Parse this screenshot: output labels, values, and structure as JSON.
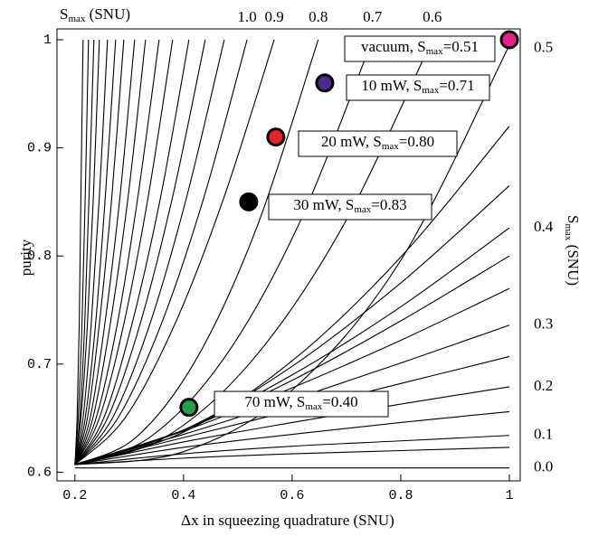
{
  "chart_data": {
    "type": "contour",
    "xlabel": "Δx in squeezing quadrature (SNU)",
    "ylabel": "purity",
    "xlim": [
      0.167,
      1.02
    ],
    "ylim": [
      0.592,
      1.01
    ],
    "xticks": [
      0.2,
      0.4,
      0.6,
      0.8,
      1
    ],
    "yticks": [
      0.6,
      0.7,
      0.8,
      0.9,
      1
    ],
    "top_axis": {
      "label": {
        "main": "S",
        "sub": "max",
        "rest": " (SNU)"
      },
      "ticks": [
        {
          "value": 1,
          "label": "1.0",
          "at": 0.517
        },
        {
          "value": 0.9,
          "at": 0.567
        },
        {
          "value": 0.8,
          "at": 0.648
        },
        {
          "value": 0.7,
          "at": 0.748
        },
        {
          "value": 0.6,
          "at": 0.858
        }
      ]
    },
    "right_axis": {
      "label": {
        "main": "S",
        "sub": "max",
        "rest": " (SNU)"
      },
      "ticks": [
        {
          "value": 0.5,
          "at": 0.992
        },
        {
          "value": 0.4,
          "at": 0.826
        },
        {
          "value": 0.3,
          "at": 0.736
        },
        {
          "value": 0.2,
          "at": 0.679
        },
        {
          "value": 0.1,
          "at": 0.634
        },
        {
          "value": 0,
          "label": "0.0",
          "at": 0.604
        }
      ]
    },
    "contour_color": "#000000",
    "contours": [
      {
        "x": [
          0.2,
          0.204,
          0.208,
          0.211,
          0.215
        ],
        "y": [
          0.607,
          0.65,
          0.737,
          0.855,
          1.0
        ]
      },
      {
        "x": [
          0.2,
          0.206,
          0.213,
          0.219,
          0.225
        ],
        "y": [
          0.607,
          0.65,
          0.737,
          0.855,
          1.0
        ]
      },
      {
        "x": [
          0.2,
          0.209,
          0.218,
          0.226,
          0.235
        ],
        "y": [
          0.607,
          0.65,
          0.737,
          0.855,
          1.0
        ]
      },
      {
        "x": [
          0.2,
          0.211,
          0.223,
          0.234,
          0.245
        ],
        "y": [
          0.607,
          0.65,
          0.737,
          0.855,
          1.0
        ]
      },
      {
        "x": [
          0.2,
          0.215,
          0.23,
          0.245,
          0.26
        ],
        "y": [
          0.607,
          0.65,
          0.737,
          0.855,
          1.0
        ]
      },
      {
        "x": [
          0.2,
          0.219,
          0.238,
          0.256,
          0.275
        ],
        "y": [
          0.607,
          0.65,
          0.737,
          0.855,
          1.0
        ]
      },
      {
        "x": [
          0.2,
          0.223,
          0.245,
          0.268,
          0.29
        ],
        "y": [
          0.607,
          0.65,
          0.737,
          0.855,
          1.0
        ]
      },
      {
        "x": [
          0.2,
          0.228,
          0.255,
          0.283,
          0.31
        ],
        "y": [
          0.607,
          0.65,
          0.737,
          0.855,
          1.0
        ]
      },
      {
        "x": [
          0.2,
          0.233,
          0.265,
          0.298,
          0.33
        ],
        "y": [
          0.607,
          0.65,
          0.737,
          0.855,
          1.0
        ]
      },
      {
        "x": [
          0.2,
          0.239,
          0.278,
          0.316,
          0.355
        ],
        "y": [
          0.607,
          0.65,
          0.737,
          0.855,
          1.0
        ]
      },
      {
        "x": [
          0.2,
          0.245,
          0.29,
          0.335,
          0.38
        ],
        "y": [
          0.607,
          0.65,
          0.737,
          0.855,
          1.0
        ]
      },
      {
        "x": [
          0.2,
          0.253,
          0.305,
          0.358,
          0.41
        ],
        "y": [
          0.607,
          0.65,
          0.737,
          0.855,
          1.0
        ]
      },
      {
        "x": [
          0.2,
          0.26,
          0.32,
          0.38,
          0.44
        ],
        "y": [
          0.607,
          0.65,
          0.737,
          0.855,
          1.0
        ]
      },
      {
        "x": [
          0.2,
          0.269,
          0.338,
          0.406,
          0.475
        ],
        "y": [
          0.607,
          0.65,
          0.737,
          0.855,
          1.0
        ]
      },
      {
        "x": [
          0.2,
          0.279,
          0.359,
          0.438,
          0.517
        ],
        "y": [
          0.607,
          0.65,
          0.737,
          0.855,
          1.0
        ]
      },
      {
        "x": [
          0.2,
          0.292,
          0.384,
          0.475,
          0.567
        ],
        "y": [
          0.607,
          0.65,
          0.737,
          0.855,
          1.0
        ]
      },
      {
        "x": [
          0.2,
          0.312,
          0.424,
          0.536,
          0.648
        ],
        "y": [
          0.607,
          0.632,
          0.705,
          0.828,
          1.0
        ]
      },
      {
        "x": [
          0.2,
          0.337,
          0.474,
          0.611,
          0.748
        ],
        "y": [
          0.607,
          0.632,
          0.705,
          0.828,
          1.0
        ]
      },
      {
        "x": [
          0.2,
          0.365,
          0.529,
          0.694,
          0.858
        ],
        "y": [
          0.607,
          0.632,
          0.705,
          0.828,
          1.0
        ]
      },
      {
        "x": [
          0.2,
          0.4,
          0.6,
          0.8,
          1.0
        ],
        "y": [
          0.607,
          0.619,
          0.676,
          0.796,
          0.995
        ]
      },
      {
        "x": [
          0.2,
          0.4,
          0.6,
          0.8,
          1.0
        ],
        "y": [
          0.607,
          0.637,
          0.703,
          0.799,
          0.92
        ]
      },
      {
        "x": [
          0.2,
          0.4,
          0.6,
          0.8,
          1.0
        ],
        "y": [
          0.607,
          0.639,
          0.698,
          0.775,
          0.865
        ]
      },
      {
        "x": [
          0.2,
          0.4,
          0.6,
          0.8,
          1.0
        ],
        "y": [
          0.607,
          0.639,
          0.69,
          0.753,
          0.826
        ]
      },
      {
        "x": [
          0.2,
          0.4,
          0.6,
          0.8,
          1.0
        ],
        "y": [
          0.607,
          0.639,
          0.685,
          0.74,
          0.8
        ]
      },
      {
        "x": [
          0.2,
          0.4,
          0.6,
          0.8,
          1.0
        ],
        "y": [
          0.607,
          0.638,
          0.678,
          0.722,
          0.77
        ]
      },
      {
        "x": [
          0.2,
          0.4,
          0.6,
          0.8,
          1.0
        ],
        "y": [
          0.607,
          0.635,
          0.667,
          0.701,
          0.736
        ]
      },
      {
        "x": [
          0.2,
          0.4,
          0.6,
          0.8,
          1.0
        ],
        "y": [
          0.607,
          0.632,
          0.657,
          0.682,
          0.707
        ]
      },
      {
        "x": [
          0.2,
          0.4,
          0.6,
          0.8,
          1.0
        ],
        "y": [
          0.607,
          0.628,
          0.646,
          0.663,
          0.679
        ]
      },
      {
        "x": [
          0.2,
          0.4,
          0.6,
          0.8,
          1.0
        ],
        "y": [
          0.607,
          0.623,
          0.635,
          0.646,
          0.656
        ]
      },
      {
        "x": [
          0.2,
          0.4,
          0.6,
          0.8,
          1.0
        ],
        "y": [
          0.607,
          0.617,
          0.624,
          0.629,
          0.634
        ]
      },
      {
        "x": [
          0.2,
          0.4,
          0.6,
          0.8,
          1.0
        ],
        "y": [
          0.607,
          0.613,
          0.617,
          0.62,
          0.623
        ]
      },
      {
        "x": [
          0.2,
          0.4,
          0.6,
          0.8,
          1.0
        ],
        "y": [
          0.604,
          0.604,
          0.604,
          0.604,
          0.604
        ]
      }
    ],
    "points": [
      {
        "x": 1.0,
        "y": 1.0,
        "color": "#e4208e",
        "label": {
          "pre": "vacuum, S",
          "sub": "max",
          "post": "=0.51"
        }
      },
      {
        "x": 0.66,
        "y": 0.96,
        "color": "#4a2c8f",
        "label": {
          "pre": "10 mW, S",
          "sub": "max",
          "post": "=0.71"
        }
      },
      {
        "x": 0.57,
        "y": 0.91,
        "color": "#e8202a",
        "label": {
          "pre": "20 mW, S",
          "sub": "max",
          "post": "=0.80"
        }
      },
      {
        "x": 0.52,
        "y": 0.85,
        "color": "#000000",
        "label": {
          "pre": "30 mW, S",
          "sub": "max",
          "post": "=0.83"
        }
      },
      {
        "x": 0.41,
        "y": 0.66,
        "color": "#1fa34a",
        "label": {
          "pre": "70 mW, S",
          "sub": "max",
          "post": "=0.40"
        }
      }
    ]
  }
}
